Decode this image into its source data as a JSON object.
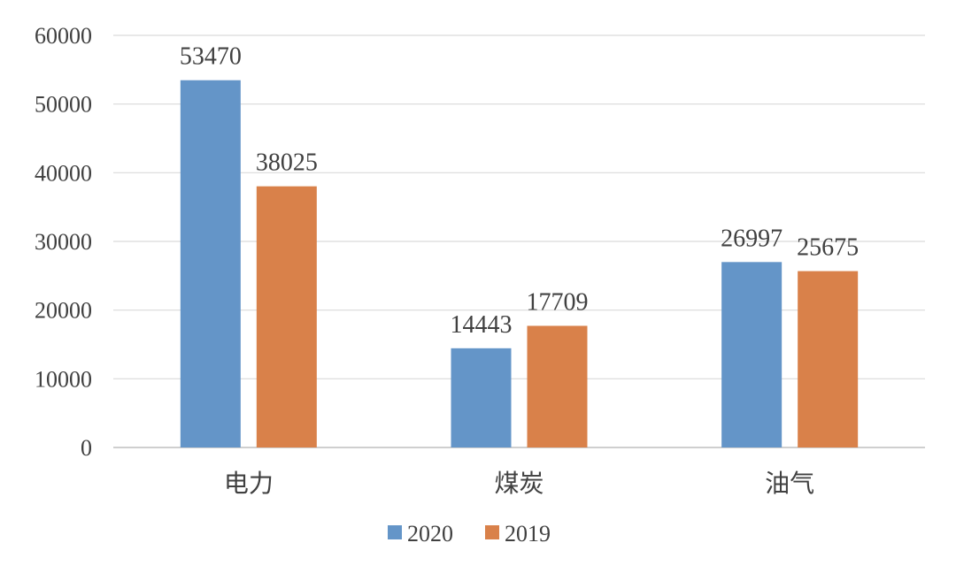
{
  "chart_data": {
    "type": "bar",
    "title": "",
    "xlabel": "",
    "ylabel": "",
    "categories": [
      "电力",
      "煤炭",
      "油气"
    ],
    "series": [
      {
        "name": "2020",
        "color": "#6495c8",
        "values": [
          53470,
          14443,
          26997
        ]
      },
      {
        "name": "2019",
        "color": "#d9814a",
        "values": [
          38025,
          17709,
          25675
        ]
      }
    ],
    "ylim": [
      0,
      60000
    ],
    "yticks": [
      0,
      10000,
      20000,
      30000,
      40000,
      50000,
      60000
    ],
    "grid": true,
    "legend_position": "bottom"
  }
}
